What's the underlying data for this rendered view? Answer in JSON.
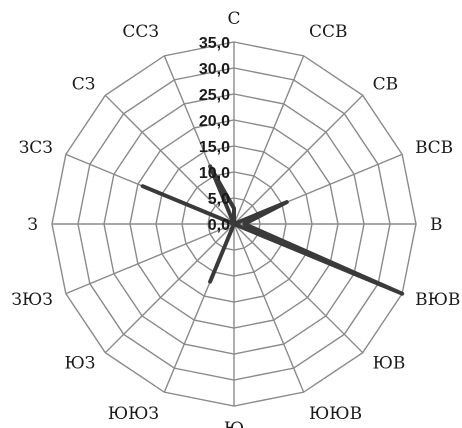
{
  "chart_data": {
    "type": "radar",
    "categories": [
      "С",
      "ССВ",
      "СВ",
      "ВСВ",
      "В",
      "ВЮВ",
      "ЮВ",
      "ЮЮВ",
      "Ю",
      "ЮЮЗ",
      "ЮЗ",
      "ЗЮЗ",
      "З",
      "ЗСЗ",
      "СЗ",
      "ССЗ"
    ],
    "series": [
      {
        "values": [
          3.0,
          0.0,
          0.0,
          11.0,
          2.0,
          35.0,
          0.0,
          0.0,
          0.0,
          12.0,
          0.0,
          0.0,
          0.0,
          19.0,
          0.0,
          12.0
        ]
      }
    ],
    "ylim": [
      0,
      35
    ],
    "ticks": [
      "0,0",
      "5,0",
      "10,0",
      "15,0",
      "20,0",
      "25,0",
      "30,0",
      "35,0"
    ],
    "grid": true,
    "series_color": "#3a3a3a",
    "grid_color": "#8a8a8a"
  }
}
